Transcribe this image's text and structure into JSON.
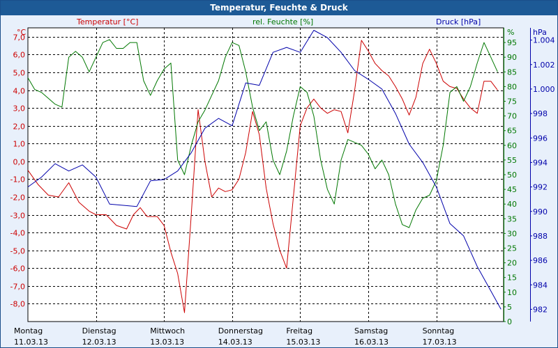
{
  "window": {
    "title": "Temperatur, Feuchte & Druck"
  },
  "colors": {
    "temperature": "#cc0000",
    "humidity": "#007700",
    "pressure": "#0000aa",
    "axis": "#000000",
    "titlebar": "#1d5a96",
    "plot_bg": "#ffffff",
    "page_bg": "#e8f0fb"
  },
  "chart_data": {
    "type": "line",
    "title": "Temperatur, Feuchte & Druck",
    "grid": true,
    "x_days": [
      {
        "day": "Montag",
        "date": "11.03.13"
      },
      {
        "day": "Dienstag",
        "date": "12.03.13"
      },
      {
        "day": "Mittwoch",
        "date": "13.03.13"
      },
      {
        "day": "Donnerstag",
        "date": "14.03.13"
      },
      {
        "day": "Freitag",
        "date": "15.03.13"
      },
      {
        "day": "Samstag",
        "date": "16.03.13"
      },
      {
        "day": "Sonntag",
        "date": "17.03.13"
      }
    ],
    "axes": {
      "temperature": {
        "label": "Temperatur [°C]",
        "unit": "°C",
        "ylim": [
          -9,
          7.5
        ],
        "ticks": [
          "7,0",
          "6,0",
          "5,0",
          "4,0",
          "3,0",
          "2,0",
          "1,0",
          "0,0",
          "-1,0",
          "-2,0",
          "-3,0",
          "-4,0",
          "-5,0",
          "-6,0",
          "-7,0",
          "-8,0"
        ],
        "tick_values": [
          7,
          6,
          5,
          4,
          3,
          2,
          1,
          0,
          -1,
          -2,
          -3,
          -4,
          -5,
          -6,
          -7,
          -8
        ]
      },
      "humidity": {
        "label": "rel. Feuchte [%]",
        "unit": "%",
        "ylim": [
          0,
          100
        ],
        "ticks": [
          "95",
          "90",
          "85",
          "80",
          "75",
          "70",
          "65",
          "60",
          "55",
          "50",
          "45",
          "40",
          "35",
          "30",
          "25",
          "20",
          "15",
          "10",
          "5",
          "0"
        ],
        "tick_values": [
          95,
          90,
          85,
          80,
          75,
          70,
          65,
          60,
          55,
          50,
          45,
          40,
          35,
          30,
          25,
          20,
          15,
          10,
          5,
          0
        ]
      },
      "pressure": {
        "label": "Druck [hPa]",
        "unit": "hPa",
        "ylim": [
          981,
          1005
        ],
        "ticks": [
          "1.004",
          "1.002",
          "1.000",
          "998",
          "996",
          "994",
          "992",
          "990",
          "988",
          "986",
          "984",
          "982"
        ],
        "tick_values": [
          1004,
          1002,
          1000,
          998,
          996,
          994,
          992,
          990,
          988,
          986,
          984,
          982
        ]
      }
    },
    "series": [
      {
        "name": "Temperatur [°C]",
        "axis": "temperature",
        "days": [
          0,
          0.15,
          0.3,
          0.45,
          0.6,
          0.75,
          0.9,
          1.0,
          1.15,
          1.3,
          1.45,
          1.55,
          1.65,
          1.75,
          1.9,
          2.0,
          2.1,
          2.2,
          2.3,
          2.4,
          2.5,
          2.6,
          2.7,
          2.8,
          2.9,
          3.0,
          3.1,
          3.2,
          3.3,
          3.4,
          3.5,
          3.6,
          3.7,
          3.8,
          3.9,
          4.0,
          4.1,
          4.2,
          4.3,
          4.4,
          4.5,
          4.6,
          4.7,
          4.8,
          4.9,
          5.0,
          5.1,
          5.2,
          5.3,
          5.4,
          5.5,
          5.6,
          5.7,
          5.8,
          5.9,
          6.0,
          6.1,
          6.2,
          6.3,
          6.4,
          6.5,
          6.6,
          6.7,
          6.8,
          6.9
        ],
        "values": [
          -0.5,
          -1.3,
          -1.9,
          -2.0,
          -1.2,
          -2.3,
          -2.8,
          -3.0,
          -3.0,
          -3.6,
          -3.8,
          -3.0,
          -2.6,
          -3.1,
          -3.1,
          -3.6,
          -5.1,
          -6.3,
          -8.5,
          -3.0,
          2.9,
          0.0,
          -2.0,
          -1.5,
          -1.7,
          -1.6,
          -1.0,
          0.5,
          2.8,
          1.5,
          -1.5,
          -3.5,
          -5.0,
          -6.0,
          -2.0,
          2.0,
          3.0,
          3.5,
          3.0,
          2.7,
          2.9,
          2.8,
          1.6,
          4.0,
          6.8,
          6.2,
          5.5,
          5.1,
          4.8,
          4.2,
          3.5,
          2.6,
          3.6,
          5.5,
          6.3,
          5.5,
          4.5,
          4.2,
          4.1,
          3.5,
          3.0,
          2.7,
          4.5,
          4.5,
          4.0
        ]
      },
      {
        "name": "rel. Feuchte [%]",
        "axis": "humidity",
        "days": [
          0,
          0.1,
          0.2,
          0.3,
          0.4,
          0.5,
          0.6,
          0.7,
          0.8,
          0.9,
          1.0,
          1.1,
          1.2,
          1.3,
          1.4,
          1.5,
          1.6,
          1.7,
          1.8,
          1.9,
          2.0,
          2.1,
          2.2,
          2.3,
          2.4,
          2.5,
          2.6,
          2.7,
          2.8,
          2.9,
          3.0,
          3.1,
          3.2,
          3.3,
          3.4,
          3.5,
          3.6,
          3.7,
          3.8,
          3.9,
          4.0,
          4.1,
          4.2,
          4.3,
          4.4,
          4.5,
          4.6,
          4.7,
          4.8,
          4.9,
          5.0,
          5.1,
          5.2,
          5.3,
          5.4,
          5.5,
          5.6,
          5.7,
          5.8,
          5.9,
          6.0,
          6.1,
          6.2,
          6.3,
          6.4,
          6.5,
          6.6,
          6.7,
          6.8,
          6.9
        ],
        "values": [
          83,
          79,
          78,
          76,
          74,
          73,
          90,
          92,
          90,
          85,
          90,
          95,
          96,
          93,
          93,
          95,
          95,
          82,
          77,
          82,
          86,
          88,
          55,
          50,
          60,
          68,
          72,
          77,
          82,
          90,
          95,
          94,
          85,
          73,
          65,
          68,
          55,
          50,
          58,
          70,
          80,
          78,
          70,
          55,
          45,
          40,
          55,
          62,
          61,
          60,
          57,
          52,
          55,
          50,
          40,
          33,
          32,
          38,
          42,
          43,
          48,
          60,
          78,
          80,
          75,
          80,
          88,
          95,
          90,
          85
        ]
      },
      {
        "name": "Druck [hPa]",
        "axis": "pressure",
        "days": [
          0,
          0.2,
          0.4,
          0.6,
          0.8,
          1.0,
          1.2,
          1.4,
          1.6,
          1.8,
          2.0,
          2.2,
          2.4,
          2.6,
          2.8,
          3.0,
          3.2,
          3.4,
          3.6,
          3.8,
          4.0,
          4.2,
          4.4,
          4.6,
          4.8,
          5.0,
          5.2,
          5.4,
          5.6,
          5.8,
          6.0,
          6.2,
          6.4,
          6.6,
          6.8,
          6.95
        ],
        "values": [
          992.0,
          992.8,
          993.9,
          993.3,
          993.8,
          992.8,
          990.6,
          990.5,
          990.4,
          992.5,
          992.6,
          993.3,
          994.8,
          996.8,
          997.6,
          997.0,
          1000.5,
          1000.3,
          1003.0,
          1003.4,
          1003.0,
          1004.8,
          1004.2,
          1003.0,
          1001.5,
          1000.8,
          1000.0,
          998.0,
          995.5,
          994.0,
          992.0,
          989.0,
          988.0,
          985.5,
          983.5,
          982.0
        ]
      }
    ]
  }
}
